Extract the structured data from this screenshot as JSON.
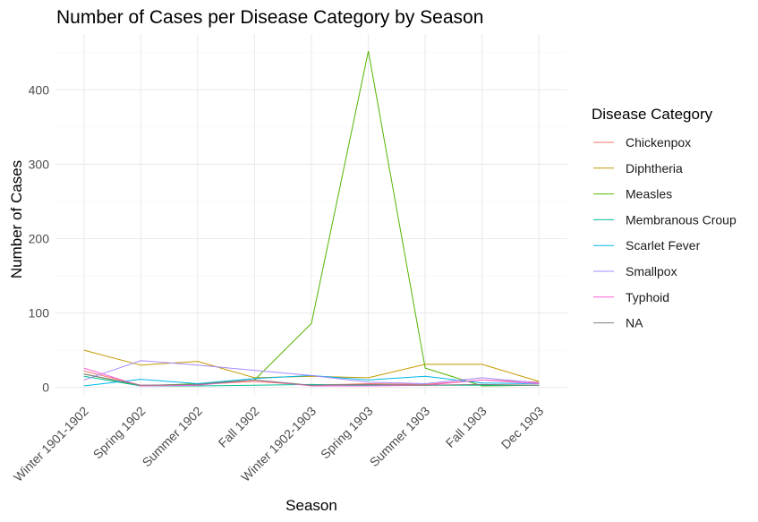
{
  "chart_data": {
    "type": "line",
    "title": "Number of Cases per Disease Category by Season",
    "xlabel": "Season",
    "ylabel": "Number of Cases",
    "categories": [
      "Winter 1901-1902",
      "Spring 1902",
      "Summer 1902",
      "Fall 1902",
      "Winter 1902-1903",
      "Spring 1903",
      "Summer 1903",
      "Fall 1903",
      "Dec 1903"
    ],
    "yticks": [
      0,
      100,
      200,
      300,
      400
    ],
    "ylim": [
      -10,
      475
    ],
    "grid": true,
    "legend": {
      "title": "Disease Category",
      "position": "right"
    },
    "series": [
      {
        "name": "Chickenpox",
        "color": "#F8766D",
        "values": [
          22,
          3,
          4,
          8,
          3,
          5,
          4,
          10,
          7
        ]
      },
      {
        "name": "Diphtheria",
        "color": "#C49A00",
        "values": [
          50,
          30,
          35,
          13,
          15,
          13,
          31,
          31,
          8
        ]
      },
      {
        "name": "Measles",
        "color": "#53B400",
        "values": [
          18,
          2,
          5,
          10,
          86,
          452,
          26,
          2,
          3
        ]
      },
      {
        "name": "Membranous Croup",
        "color": "#00C094",
        "values": [
          15,
          2,
          2,
          3,
          4,
          3,
          3,
          3,
          3
        ]
      },
      {
        "name": "Scarlet Fever",
        "color": "#00B6EB",
        "values": [
          2,
          11,
          5,
          12,
          16,
          10,
          15,
          6,
          5
        ]
      },
      {
        "name": "Smallpox",
        "color": "#A58AFF",
        "values": [
          10,
          36,
          30,
          23,
          16,
          7,
          5,
          13,
          6
        ]
      },
      {
        "name": "Typhoid",
        "color": "#FB61D7",
        "values": [
          26,
          2,
          3,
          10,
          2,
          2,
          3,
          10,
          5
        ]
      },
      {
        "name": "NA",
        "color": "#7F7F7F",
        "values": [
          18,
          3,
          4,
          10,
          3,
          4,
          3,
          4,
          3
        ]
      }
    ]
  }
}
